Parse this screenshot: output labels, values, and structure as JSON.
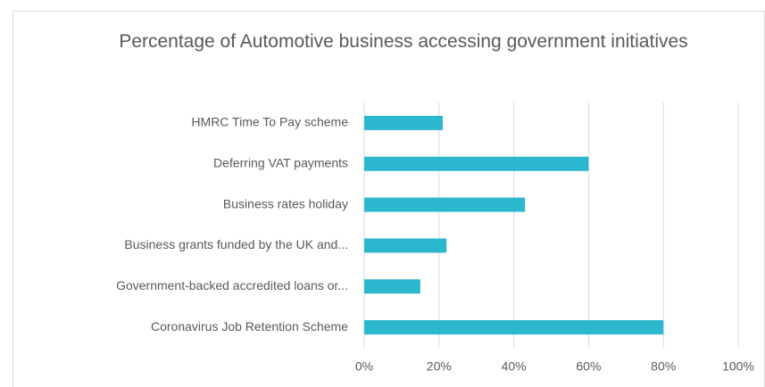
{
  "chart_data": {
    "type": "bar",
    "orientation": "horizontal",
    "title": "Percentage of Automotive business accessing government initiatives",
    "categories": [
      "HMRC Time To Pay scheme",
      "Deferring VAT payments",
      "Business rates holiday",
      "Business grants funded by the UK and...",
      "Government-backed accredited loans or...",
      "Coronavirus Job Retention Scheme"
    ],
    "values": [
      21,
      60,
      43,
      22,
      15,
      80
    ],
    "color": "#2bb7cd",
    "xlim": [
      0,
      100
    ],
    "xticks": [
      {
        "value": 0,
        "label": "0%"
      },
      {
        "value": 20,
        "label": "20%"
      },
      {
        "value": 40,
        "label": "40%"
      },
      {
        "value": 60,
        "label": "60%"
      },
      {
        "value": 80,
        "label": "80%"
      },
      {
        "value": 100,
        "label": "100%"
      }
    ],
    "grid": true
  }
}
